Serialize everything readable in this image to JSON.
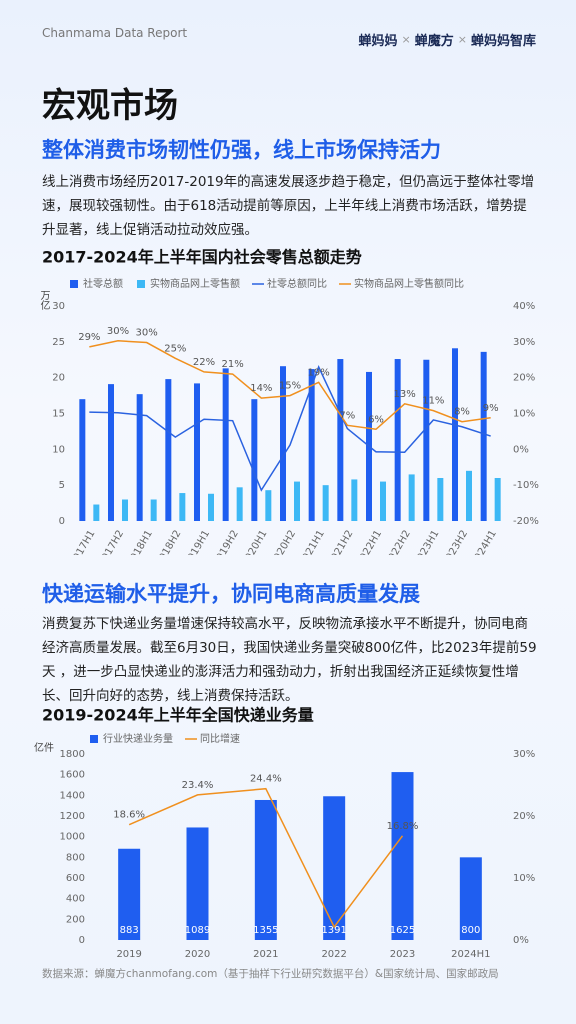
{
  "header": {
    "report": "Chanmama Data Report",
    "brands": [
      "蝉妈妈",
      "蝉魔方",
      "蝉妈妈智库"
    ],
    "separator": "×"
  },
  "page_title": "宏观市场",
  "sections": [
    {
      "heading": "整体消费市场韧性仍强，线上市场保持活力",
      "text": "线上消费市场经历2017-2019年的高速发展逐步趋于稳定，但仍高远于整体社零增速，展现较强韧性。由于618活动提前等原因，上半年线上消费市场活跃，增势提升显著，线上促销活动拉动效应强。"
    },
    {
      "heading": "快递运输水平提升，协同电商高质量发展",
      "text": "消费复苏下快递业务量增速保持较高水平，反映物流承接水平不断提升，协同电商经济高质量发展。截至6月30日，我国快递业务量突破800亿件，比2023年提前59天 ，进一步凸显快递业的澎湃活力和强劲动力，折射出我国经济正延续恢复性增长、回升向好的态势，线上消费保持活跃。"
    }
  ],
  "source": "数据来源：蝉魔方chanmofang.com（基于抽样下行业研究数据平台）&国家统计局、国家邮政局",
  "chart_data": [
    {
      "type": "combo",
      "title": "2017-2024年上半年国内社会零售总额走势",
      "ylabel": "万亿",
      "categories": [
        "2017H1",
        "2017H2",
        "2018H1",
        "2018H2",
        "2019H1",
        "2019H2",
        "2020H1",
        "2020H2",
        "2021H1",
        "2021H2",
        "2022H1",
        "2022H2",
        "2023H1",
        "2023H2",
        "2024H1"
      ],
      "ylim": [
        0,
        30
      ],
      "yticks": [
        0,
        5,
        10,
        15,
        20,
        25,
        30
      ],
      "y2lim": [
        -20,
        40
      ],
      "y2ticks": [
        {
          "value": -20,
          "label": "-20%"
        },
        {
          "value": -10,
          "label": "-10%"
        },
        {
          "value": 0,
          "label": "0%"
        },
        {
          "value": 10,
          "label": "10%"
        },
        {
          "value": 20,
          "label": "20%"
        },
        {
          "value": 30,
          "label": "30%"
        },
        {
          "value": 40,
          "label": "40%"
        }
      ],
      "series": [
        {
          "name": "社零总额",
          "kind": "bar",
          "color": "#1f5ef0",
          "values": [
            17.0,
            19.1,
            17.7,
            19.8,
            19.2,
            21.3,
            17.0,
            21.6,
            21.2,
            22.6,
            20.8,
            22.6,
            22.5,
            24.1,
            23.6
          ]
        },
        {
          "name": "实物商品网上零售额",
          "kind": "bar",
          "color": "#3db8f5",
          "values": [
            2.3,
            3.0,
            3.0,
            3.9,
            3.8,
            4.7,
            4.3,
            5.5,
            5.0,
            5.8,
            5.5,
            6.5,
            6.0,
            7.0,
            6.0
          ]
        },
        {
          "name": "社零总额同比",
          "kind": "line",
          "axis": "y2",
          "color": "#2a62e0",
          "values": [
            10.4,
            10.2,
            9.4,
            3.4,
            8.4,
            8.0,
            -11.4,
            1.2,
            23.0,
            5.8,
            -0.7,
            -0.8,
            8.2,
            6.3,
            3.7
          ]
        },
        {
          "name": "实物商品网上零售额同比",
          "kind": "line",
          "axis": "y2",
          "color": "#f0901e",
          "values": [
            28.6,
            30.3,
            29.8,
            25.4,
            21.6,
            21.0,
            14.3,
            15.0,
            18.7,
            6.7,
            5.6,
            12.7,
            10.8,
            7.7,
            8.8
          ],
          "value_labels": [
            "29%",
            "30%",
            "30%",
            "25%",
            "22%",
            "21%",
            "14%",
            "15%",
            "19%",
            "7%",
            "6%",
            "13%",
            "11%",
            "8%",
            "9%"
          ]
        }
      ]
    },
    {
      "type": "combo",
      "title": "2019-2024年上半年全国快递业务量",
      "ylabel": "亿件",
      "categories": [
        "2019",
        "2020",
        "2021",
        "2022",
        "2023",
        "2024H1"
      ],
      "ylim": [
        0,
        1800
      ],
      "yticks": [
        0,
        200,
        400,
        600,
        800,
        1000,
        1200,
        1400,
        1600,
        1800
      ],
      "y2lim": [
        0,
        30
      ],
      "y2ticks": [
        {
          "value": 0,
          "label": "0%"
        },
        {
          "value": 10,
          "label": "10%"
        },
        {
          "value": 20,
          "label": "20%"
        },
        {
          "value": 30,
          "label": "30%"
        }
      ],
      "series": [
        {
          "name": "行业快递业务量",
          "kind": "bar",
          "color": "#1f5ef0",
          "labels_inside": true,
          "values": [
            883,
            1089,
            1355,
            1391,
            1625,
            800
          ]
        },
        {
          "name": "同比增速",
          "kind": "line",
          "axis": "y2",
          "color": "#f0901e",
          "values": [
            18.6,
            23.4,
            24.4,
            2.1,
            16.8,
            null
          ],
          "value_labels": [
            "18.6%",
            "23.4%",
            "24.4%",
            null,
            "16.8%",
            null
          ]
        }
      ]
    }
  ]
}
